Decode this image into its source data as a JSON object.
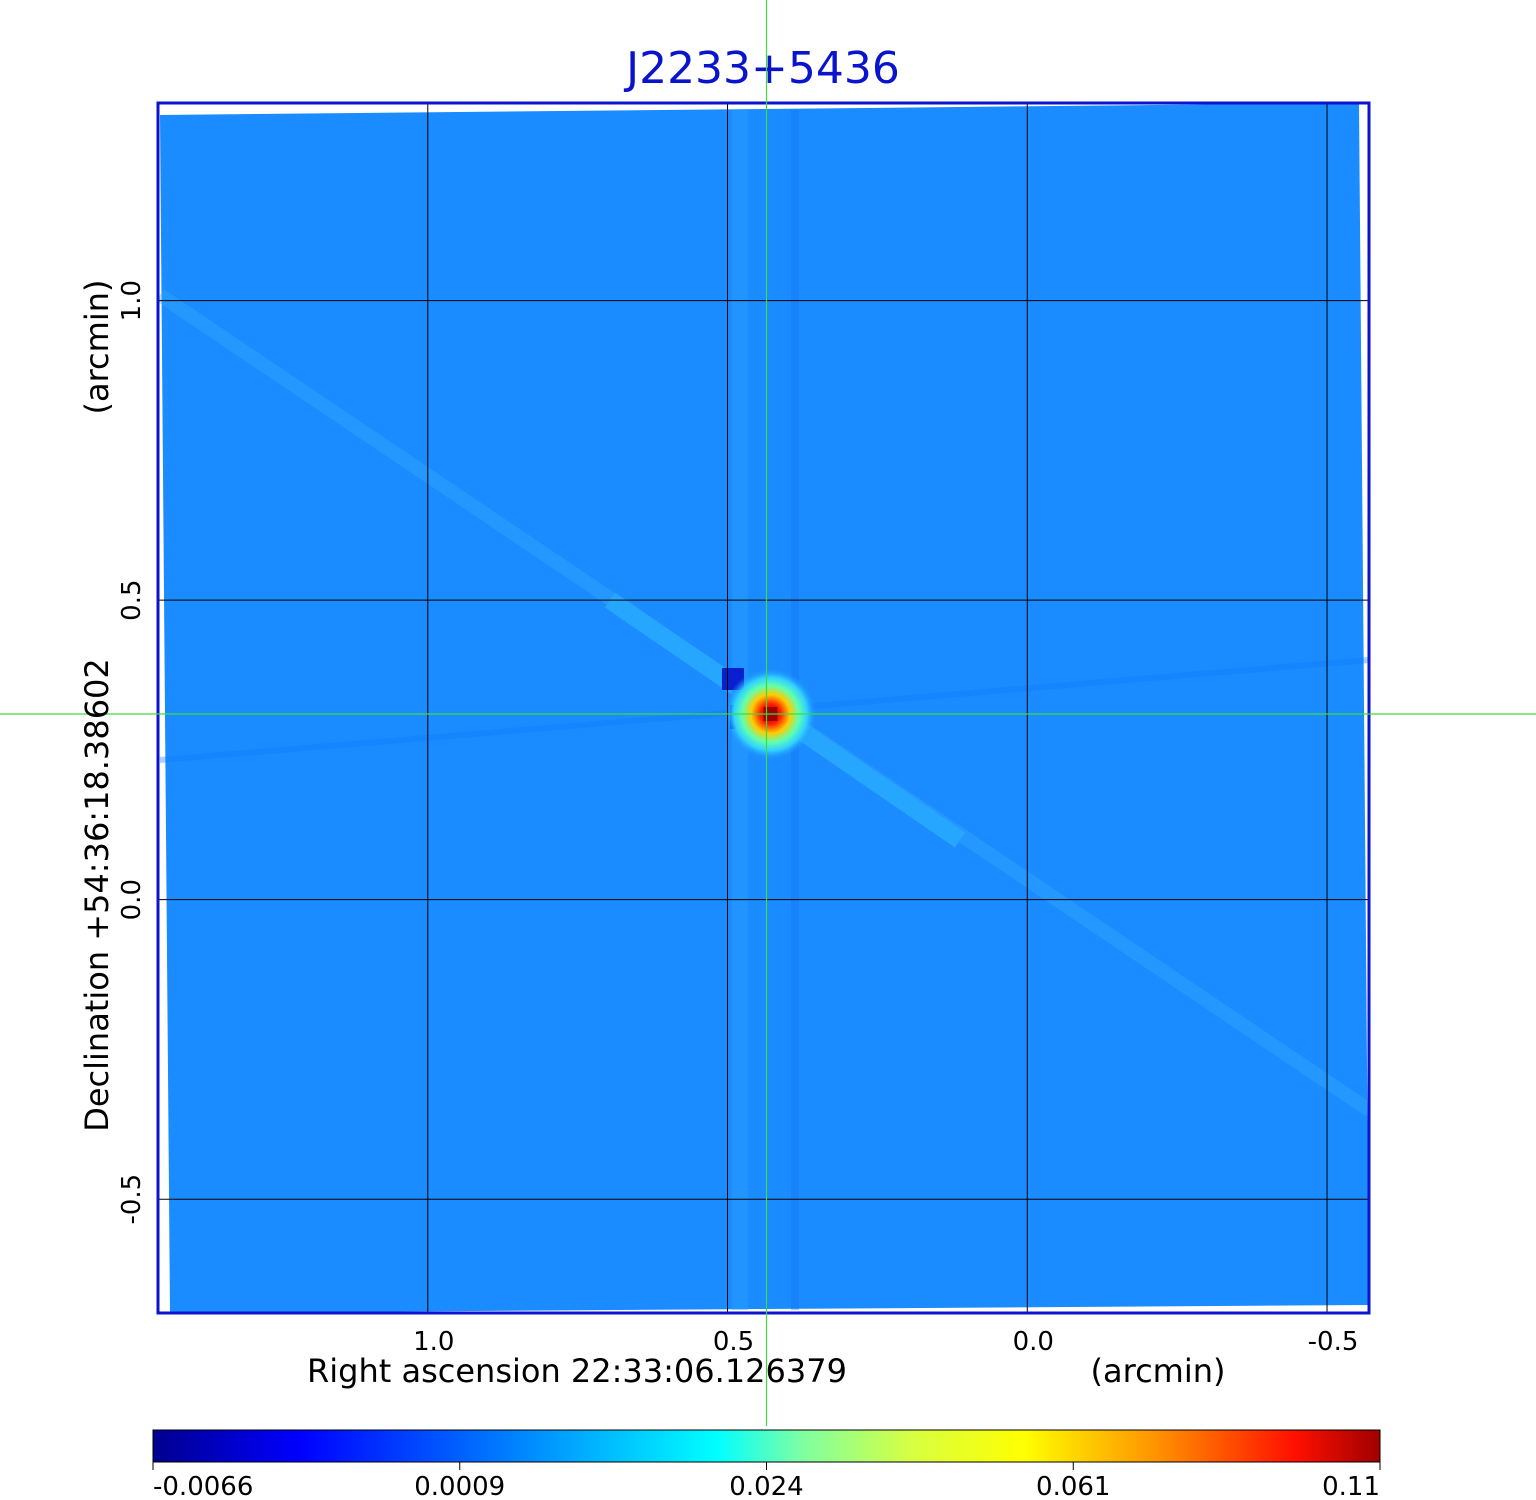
{
  "chart_data": {
    "type": "heatmap",
    "title": "J2233+5436",
    "xlabel": "Right ascension  22:33:06.126379",
    "xunit": "(arcmin)",
    "ylabel": "Declination  +54:36:18.38602",
    "yunit": "(arcmin)",
    "x_ticks": [
      1.0,
      0.5,
      0.0,
      -0.5
    ],
    "x_tick_labels": [
      "1.0",
      "0.5",
      "0.0",
      "-0.5"
    ],
    "y_ticks": [
      1.0,
      0.5,
      0.0,
      -0.5
    ],
    "y_tick_labels": [
      "1.0",
      "0.5",
      "0.0",
      "-0.5"
    ],
    "xlim": [
      1.45,
      -0.57
    ],
    "ylim": [
      -0.69,
      1.33
    ],
    "grid": true,
    "crosshair": {
      "x": 0.435,
      "y": 0.31
    },
    "source": {
      "x": 0.435,
      "y": 0.31,
      "peak": 0.11
    },
    "colormap": "jet",
    "colorbar": {
      "min": -0.0066,
      "max": 0.11,
      "tick_values": [
        -0.0066,
        0.0009,
        0.024,
        0.061,
        0.11
      ],
      "tick_labels": [
        "-0.0066",
        "0.0009",
        "0.024",
        "0.061",
        "0.11"
      ]
    },
    "colors": {
      "background": "#1a8cff",
      "title": "#0a14cc",
      "frame": "#0a14cc",
      "grid": "#000000",
      "crosshair": "#3ddc3d"
    }
  }
}
